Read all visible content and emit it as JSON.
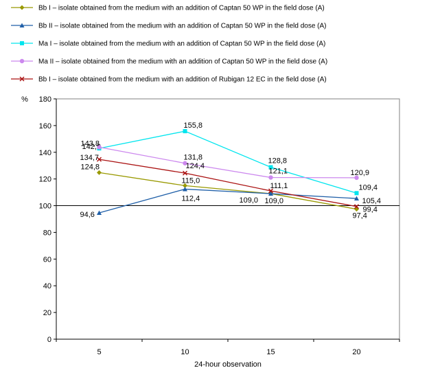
{
  "chart_data": {
    "type": "line",
    "categories": [
      "5",
      "10",
      "15",
      "20"
    ],
    "xlabel": "24-hour observation",
    "ylabel": "%",
    "ylim": [
      0,
      180
    ],
    "yticks": [
      "0",
      "20",
      "40",
      "60",
      "80",
      "100",
      "120",
      "140",
      "160",
      "180"
    ],
    "reference_line": 100,
    "legend_position": "top",
    "series": [
      {
        "name": "Bb I – isolate obtained from the medium with an addition of Captan 50 WP in the field dose (A)",
        "color": "#999900",
        "marker": "diamond",
        "values": [
          124.8,
          115.0,
          109.0,
          97.4
        ],
        "labels": [
          "124,8",
          "115,0",
          "109,0",
          "97,4"
        ]
      },
      {
        "name": "Bb II – isolate obtained from the medium with an addition of Captan 50 WP in the field dose (A)",
        "color": "#1f5fa8",
        "marker": "triangle",
        "values": [
          94.6,
          112.4,
          109.0,
          105.4
        ],
        "labels": [
          "94,6",
          "112,4",
          "109,0",
          "105,4"
        ]
      },
      {
        "name": "Ma I – isolate obtained from the medium with an addition of Captan 50 WP in the field dose (A)",
        "color": "#00e5ee",
        "marker": "square",
        "values": [
          142.9,
          155.8,
          128.8,
          109.4
        ],
        "labels": [
          "142,9",
          "155,8",
          "128,8",
          "109,4"
        ]
      },
      {
        "name": "Ma II – isolate obtained from the medium with an addition of Captan 50 WP in the field dose (A)",
        "color": "#cc88ee",
        "marker": "circle",
        "values": [
          143.8,
          131.8,
          121.1,
          120.9
        ],
        "labels": [
          "143,8",
          "131,8",
          "121,1",
          "120,9"
        ]
      },
      {
        "name": "Bb I – isolate obtained from the medium with an addition of Rubigan 12 EC in the field dose (A)",
        "color": "#aa1111",
        "marker": "x",
        "values": [
          134.7,
          124.4,
          111.1,
          99.4
        ],
        "labels": [
          "134,7",
          "124,4",
          "111,1",
          "99,4"
        ]
      }
    ]
  }
}
